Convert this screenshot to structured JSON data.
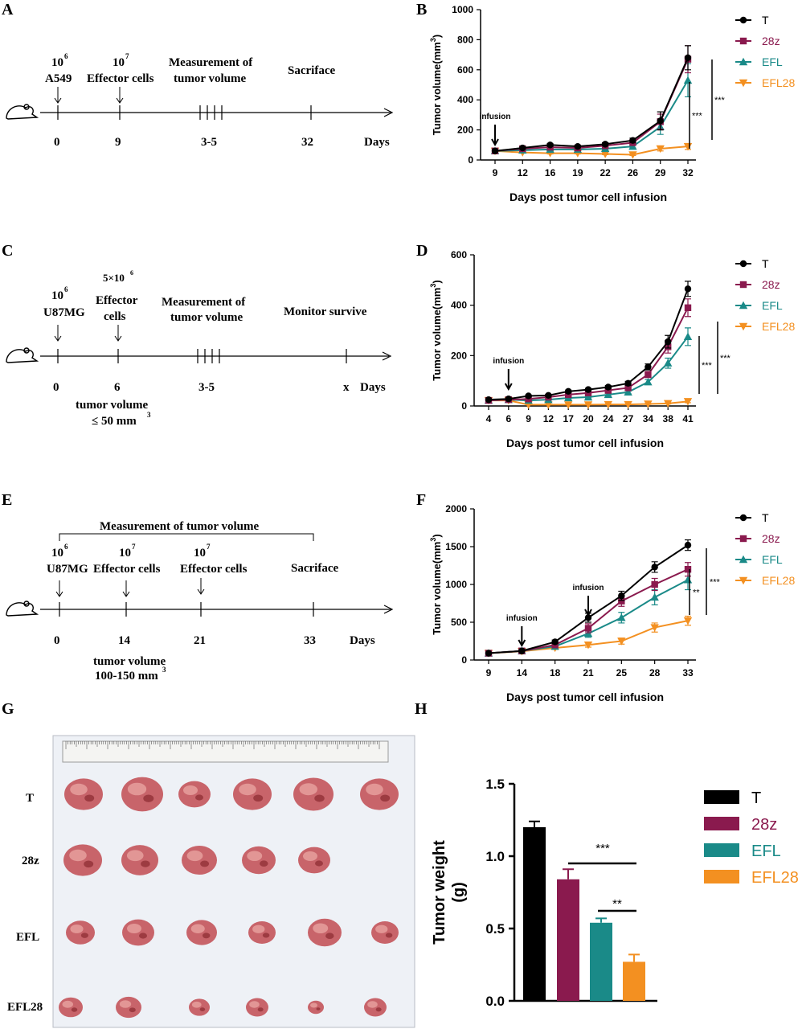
{
  "colors": {
    "T": "#000000",
    "28z": "#8a1a4e",
    "EFL": "#1a8a88",
    "EFL28": "#f39021"
  },
  "panels": {
    "A": {
      "letter": "A",
      "dose1": "10",
      "dose1_exp": "6",
      "cell1": "A549",
      "dose2": "10",
      "dose2_exp": "7",
      "cell2": "Effector cells",
      "measure": [
        "Measurement of",
        "tumor volume"
      ],
      "end_label": "Sacriface",
      "ticks": [
        "0",
        "9",
        "3-5",
        "32"
      ],
      "days": "Days"
    },
    "C": {
      "letter": "C",
      "dose1": "10",
      "dose1_exp": "6",
      "cell1": "U87MG",
      "dose2": "5×10",
      "dose2_exp": "6",
      "cell2": [
        "Effector",
        "cells"
      ],
      "measure": [
        "Measurement of",
        "tumor volume"
      ],
      "end_label": "Monitor survive",
      "ticks": [
        "0",
        "6",
        "3-5",
        "x"
      ],
      "days": "Days",
      "note": [
        "tumor volume",
        "≤ 50 mm"
      ],
      "note_exp": "3"
    },
    "E": {
      "letter": "E",
      "bracket": "Measurement of tumor volume",
      "dose1": "10",
      "dose1_exp": "6",
      "cell1": "U87MG",
      "dose2": "10",
      "dose2_exp": "7",
      "cell2": "Effector cells",
      "dose3": "10",
      "dose3_exp": "7",
      "cell3": "Effector cells",
      "end_label": "Sacriface",
      "ticks": [
        "0",
        "14",
        "21",
        "33"
      ],
      "days": "Days",
      "note": [
        "tumor volume",
        "100-150 mm"
      ],
      "note_exp": "3"
    },
    "G": {
      "letter": "G",
      "rows": [
        "T",
        "28z",
        "EFL",
        "EFL28"
      ]
    },
    "H": {
      "letter": "H"
    }
  },
  "chart_data": [
    {
      "id": "B",
      "type": "line",
      "letter": "B",
      "ylabel": "Tumor volume(mm",
      "ylabel_exp": "3",
      "ylabel_close": ")",
      "xlabel": "Days post tumor cell infusion",
      "ylim": [
        0,
        1000
      ],
      "yticks": [
        0,
        200,
        400,
        600,
        800,
        1000
      ],
      "x": [
        "9",
        "12",
        "16",
        "19",
        "22",
        "26",
        "29",
        "32"
      ],
      "series": [
        {
          "name": "T",
          "values": [
            60,
            80,
            100,
            90,
            105,
            130,
            260,
            680
          ],
          "err": [
            5,
            8,
            10,
            8,
            10,
            15,
            60,
            80
          ]
        },
        {
          "name": "28z",
          "values": [
            60,
            75,
            85,
            80,
            95,
            115,
            255,
            670
          ],
          "err": [
            5,
            8,
            8,
            8,
            10,
            12,
            50,
            90
          ]
        },
        {
          "name": "EFL",
          "values": [
            60,
            65,
            70,
            70,
            75,
            90,
            220,
            530
          ],
          "err": [
            5,
            6,
            6,
            6,
            8,
            10,
            50,
            110
          ]
        },
        {
          "name": "EFL28",
          "values": [
            60,
            50,
            45,
            45,
            40,
            35,
            75,
            90
          ],
          "err": [
            5,
            5,
            5,
            5,
            5,
            5,
            15,
            20
          ]
        }
      ],
      "annotations": {
        "arrow_label": "infusion",
        "sig_inner": "***",
        "sig_outer": "***"
      }
    },
    {
      "id": "D",
      "type": "line",
      "letter": "D",
      "ylabel": "Tumor volume(mm",
      "ylabel_exp": "3",
      "ylabel_close": ")",
      "xlabel": "Days post tumor cell infusion",
      "ylim": [
        0,
        600
      ],
      "yticks": [
        0,
        200,
        400,
        600
      ],
      "x": [
        "4",
        "6",
        "9",
        "12",
        "17",
        "20",
        "24",
        "27",
        "34",
        "38",
        "41"
      ],
      "series": [
        {
          "name": "T",
          "values": [
            25,
            28,
            40,
            42,
            58,
            65,
            75,
            90,
            155,
            255,
            465
          ],
          "err": [
            3,
            3,
            4,
            4,
            5,
            5,
            6,
            8,
            12,
            25,
            30
          ]
        },
        {
          "name": "28z",
          "values": [
            22,
            25,
            28,
            35,
            45,
            52,
            62,
            72,
            125,
            235,
            390
          ],
          "err": [
            3,
            3,
            3,
            4,
            5,
            5,
            6,
            8,
            12,
            25,
            35
          ]
        },
        {
          "name": "EFL",
          "values": [
            22,
            25,
            22,
            25,
            32,
            35,
            45,
            55,
            95,
            170,
            275
          ],
          "err": [
            3,
            3,
            3,
            3,
            4,
            4,
            5,
            6,
            10,
            20,
            35
          ]
        },
        {
          "name": "EFL28",
          "values": [
            22,
            22,
            5,
            5,
            5,
            5,
            6,
            6,
            8,
            10,
            18
          ],
          "err": [
            2,
            2,
            1,
            1,
            1,
            1,
            1,
            1,
            2,
            2,
            5
          ]
        }
      ],
      "annotations": {
        "arrow_label": "infusion",
        "sig_inner": "***",
        "sig_outer": "***"
      }
    },
    {
      "id": "F",
      "type": "line",
      "letter": "F",
      "ylabel": "Tumor volume(mm",
      "ylabel_exp": "3",
      "ylabel_close": ")",
      "xlabel": "Days post tumor cell infusion",
      "ylim": [
        0,
        2000
      ],
      "yticks": [
        0,
        500,
        1000,
        1500,
        2000
      ],
      "x": [
        "9",
        "14",
        "18",
        "21",
        "25",
        "28",
        "33"
      ],
      "series": [
        {
          "name": "T",
          "values": [
            90,
            120,
            240,
            560,
            850,
            1230,
            1520
          ],
          "err": [
            10,
            15,
            25,
            60,
            60,
            70,
            70
          ]
        },
        {
          "name": "28z",
          "values": [
            90,
            120,
            200,
            420,
            780,
            1000,
            1200
          ],
          "err": [
            10,
            15,
            20,
            60,
            70,
            80,
            90
          ]
        },
        {
          "name": "EFL",
          "values": [
            90,
            120,
            180,
            350,
            560,
            830,
            1060
          ],
          "err": [
            10,
            15,
            20,
            50,
            70,
            100,
            130
          ]
        },
        {
          "name": "EFL28",
          "values": [
            90,
            115,
            160,
            200,
            250,
            430,
            520
          ],
          "err": [
            10,
            15,
            20,
            30,
            40,
            60,
            60
          ]
        }
      ],
      "annotations": {
        "arrow_label_1": "infusion",
        "arrow_label_2": "infusion",
        "sig_inner": "**",
        "sig_outer": "***"
      }
    },
    {
      "id": "H",
      "type": "bar",
      "letter": "H",
      "ylabel": [
        "Tumor weight",
        "(g)"
      ],
      "ylim": [
        0,
        1.5
      ],
      "yticks": [
        "0.0",
        "0.5",
        "1.0",
        "1.5"
      ],
      "categories": [
        "T",
        "28z",
        "EFL",
        "EFL28"
      ],
      "values": [
        1.2,
        0.84,
        0.54,
        0.27
      ],
      "err": [
        0.04,
        0.07,
        0.03,
        0.05
      ],
      "annotations": {
        "sig_long": "***",
        "sig_short": "**"
      }
    }
  ]
}
